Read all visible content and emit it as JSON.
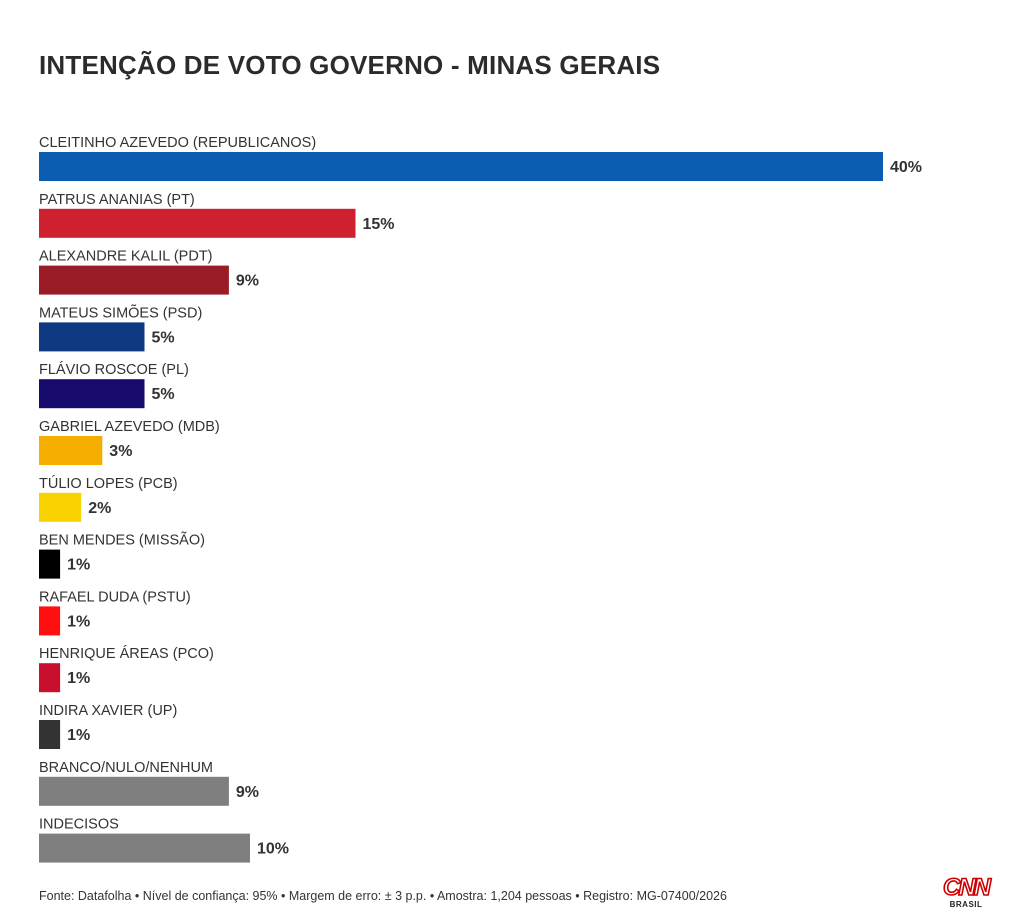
{
  "chart_data": {
    "type": "bar",
    "orientation": "horizontal",
    "title": "INTENÇÃO DE VOTO GOVERNO - MINAS GERAIS",
    "unit": "%",
    "xlim": [
      0,
      40
    ],
    "grid": false,
    "categories": [
      "CLEITINHO AZEVEDO (REPUBLICANOS)",
      "PATRUS ANANIAS (PT)",
      "ALEXANDRE KALIL (PDT)",
      "MATEUS SIMÕES (PSD)",
      "FLÁVIO ROSCOE (PL)",
      "GABRIEL AZEVEDO (MDB)",
      "TÚLIO LOPES (PCB)",
      "BEN MENDES (MISSÃO)",
      "RAFAEL DUDA (PSTU)",
      "HENRIQUE ÁREAS (PCO)",
      "INDIRA XAVIER (UP)",
      "BRANCO/NULO/NENHUM",
      "INDECISOS"
    ],
    "values": [
      40,
      15,
      9,
      5,
      5,
      3,
      2,
      1,
      1,
      1,
      1,
      9,
      10
    ],
    "value_labels": [
      "40%",
      "15%",
      "9%",
      "5%",
      "5%",
      "3%",
      "2%",
      "1%",
      "1%",
      "1%",
      "1%",
      "9%",
      "10%"
    ],
    "colors": [
      "#0a5db0",
      "#cf2030",
      "#9a1c27",
      "#0d3a80",
      "#160a6c",
      "#f5ad00",
      "#f9d200",
      "#000000",
      "#ff0f0f",
      "#c8102e",
      "#333333",
      "#7f7f7f",
      "#7f7f7f"
    ]
  },
  "footer": {
    "source_text": "Fonte: Datafolha • Nível de confiança: 95% • Margem de erro: ± 3 p.p. • Amostra: 1,204 pessoas • Registro: MG-07400/2026"
  },
  "logo": {
    "brand": "CNN",
    "sub": "BRASIL",
    "brand_color": "#cc0000"
  }
}
